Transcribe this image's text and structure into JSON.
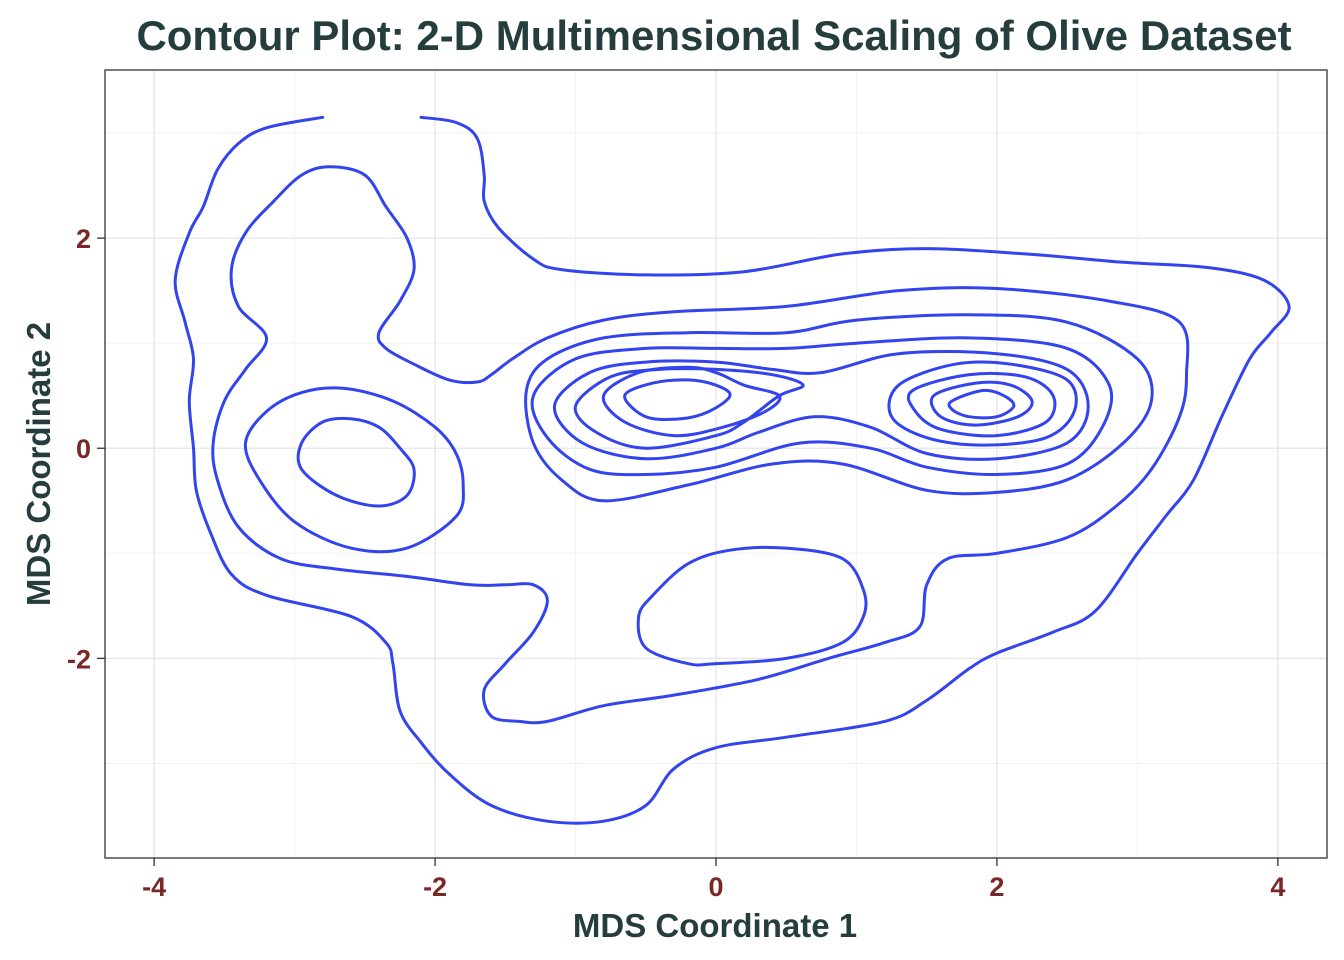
{
  "chart_data": {
    "type": "contour",
    "title": "Contour Plot:  2-D Multimensional Scaling of Olive Dataset",
    "xlabel": "MDS Coordinate 1",
    "ylabel": "MDS Coordinate 2",
    "xlim": [
      -4.35,
      4.35
    ],
    "ylim": [
      -3.9,
      3.6
    ],
    "x_ticks": [
      -4,
      -2,
      0,
      2,
      4
    ],
    "y_ticks": [
      -2,
      0,
      2
    ],
    "x_tick_labels": [
      "-4",
      "-2",
      "0",
      "2",
      "4"
    ],
    "y_tick_labels": [
      "-2",
      "0",
      "2"
    ],
    "grid": true,
    "line_color": "#3344ee",
    "contours": [
      {
        "name": "outer-level",
        "closed": false,
        "points": [
          [
            -2.1,
            3.15
          ],
          [
            -1.85,
            3.1
          ],
          [
            -1.7,
            2.95
          ],
          [
            -1.65,
            2.6
          ],
          [
            -1.65,
            2.35
          ],
          [
            -1.55,
            2.1
          ],
          [
            -1.3,
            1.8
          ],
          [
            -1.1,
            1.7
          ],
          [
            -0.5,
            1.65
          ],
          [
            0.2,
            1.68
          ],
          [
            0.9,
            1.85
          ],
          [
            1.5,
            1.9
          ],
          [
            2.2,
            1.85
          ],
          [
            2.9,
            1.77
          ],
          [
            3.5,
            1.72
          ],
          [
            3.9,
            1.6
          ],
          [
            4.08,
            1.35
          ],
          [
            3.95,
            1.1
          ],
          [
            3.8,
            0.85
          ],
          [
            3.6,
            0.3
          ],
          [
            3.4,
            -0.3
          ],
          [
            3.2,
            -0.65
          ],
          [
            3.0,
            -1.0
          ],
          [
            2.7,
            -1.55
          ],
          [
            2.4,
            -1.75
          ],
          [
            2.0,
            -1.95
          ],
          [
            1.8,
            -2.1
          ],
          [
            1.5,
            -2.4
          ],
          [
            1.2,
            -2.6
          ],
          [
            0.5,
            -2.75
          ],
          [
            0.0,
            -2.85
          ],
          [
            -0.3,
            -3.05
          ],
          [
            -0.5,
            -3.4
          ],
          [
            -0.8,
            -3.55
          ],
          [
            -1.2,
            -3.55
          ],
          [
            -1.6,
            -3.4
          ],
          [
            -1.9,
            -3.1
          ],
          [
            -2.1,
            -2.8
          ],
          [
            -2.25,
            -2.5
          ],
          [
            -2.3,
            -2.05
          ],
          [
            -2.35,
            -1.85
          ],
          [
            -2.6,
            -1.6
          ],
          [
            -3.2,
            -1.4
          ],
          [
            -3.45,
            -1.2
          ],
          [
            -3.6,
            -0.8
          ],
          [
            -3.7,
            -0.4
          ],
          [
            -3.72,
            0.0
          ],
          [
            -3.75,
            0.45
          ],
          [
            -3.72,
            0.85
          ],
          [
            -3.78,
            1.2
          ],
          [
            -3.85,
            1.6
          ],
          [
            -3.75,
            2.05
          ],
          [
            -3.65,
            2.3
          ],
          [
            -3.55,
            2.65
          ],
          [
            -3.4,
            2.9
          ],
          [
            -3.2,
            3.05
          ],
          [
            -2.8,
            3.15
          ]
        ]
      },
      {
        "name": "left-upper-lobe",
        "closed": true,
        "points": [
          [
            -2.75,
            2.68
          ],
          [
            -2.5,
            2.6
          ],
          [
            -2.35,
            2.3
          ],
          [
            -2.2,
            2.0
          ],
          [
            -2.15,
            1.7
          ],
          [
            -2.25,
            1.4
          ],
          [
            -2.4,
            1.1
          ],
          [
            -2.35,
            0.95
          ],
          [
            -2.15,
            0.8
          ],
          [
            -1.9,
            0.65
          ],
          [
            -1.7,
            0.63
          ],
          [
            -1.6,
            0.7
          ],
          [
            -1.45,
            0.85
          ],
          [
            -1.2,
            1.05
          ],
          [
            -0.8,
            1.22
          ],
          [
            -0.3,
            1.3
          ],
          [
            0.5,
            1.35
          ],
          [
            1.3,
            1.5
          ],
          [
            2.0,
            1.52
          ],
          [
            2.8,
            1.4
          ],
          [
            3.3,
            1.2
          ],
          [
            3.35,
            0.7
          ],
          [
            3.3,
            0.3
          ],
          [
            3.1,
            -0.2
          ],
          [
            2.85,
            -0.55
          ],
          [
            2.5,
            -0.85
          ],
          [
            2.0,
            -1.0
          ],
          [
            1.65,
            -1.05
          ],
          [
            1.5,
            -1.3
          ],
          [
            1.45,
            -1.7
          ],
          [
            1.2,
            -1.85
          ],
          [
            0.8,
            -2.0
          ],
          [
            0.3,
            -2.2
          ],
          [
            -0.3,
            -2.35
          ],
          [
            -0.8,
            -2.45
          ],
          [
            -1.2,
            -2.6
          ],
          [
            -1.4,
            -2.6
          ],
          [
            -1.6,
            -2.55
          ],
          [
            -1.65,
            -2.3
          ],
          [
            -1.5,
            -2.05
          ],
          [
            -1.3,
            -1.75
          ],
          [
            -1.2,
            -1.45
          ],
          [
            -1.3,
            -1.3
          ],
          [
            -1.5,
            -1.3
          ],
          [
            -1.75,
            -1.3
          ],
          [
            -2.2,
            -1.22
          ],
          [
            -2.7,
            -1.15
          ],
          [
            -3.1,
            -1.05
          ],
          [
            -3.4,
            -0.75
          ],
          [
            -3.55,
            -0.3
          ],
          [
            -3.58,
            0.05
          ],
          [
            -3.5,
            0.45
          ],
          [
            -3.35,
            0.75
          ],
          [
            -3.2,
            1.05
          ],
          [
            -3.4,
            1.35
          ],
          [
            -3.45,
            1.7
          ],
          [
            -3.35,
            2.05
          ],
          [
            -3.15,
            2.35
          ],
          [
            -2.95,
            2.6
          ]
        ]
      },
      {
        "name": "left-level-2",
        "closed": true,
        "points": [
          [
            -2.65,
            0.57
          ],
          [
            -2.3,
            0.45
          ],
          [
            -2.0,
            0.2
          ],
          [
            -1.85,
            -0.05
          ],
          [
            -1.8,
            -0.35
          ],
          [
            -1.85,
            -0.65
          ],
          [
            -2.2,
            -0.95
          ],
          [
            -2.6,
            -0.95
          ],
          [
            -3.0,
            -0.7
          ],
          [
            -3.25,
            -0.3
          ],
          [
            -3.35,
            0.05
          ],
          [
            -3.2,
            0.35
          ],
          [
            -2.95,
            0.53
          ]
        ]
      },
      {
        "name": "left-level-3",
        "closed": true,
        "points": [
          [
            -2.6,
            0.28
          ],
          [
            -2.4,
            0.2
          ],
          [
            -2.25,
            0.0
          ],
          [
            -2.15,
            -0.2
          ],
          [
            -2.2,
            -0.45
          ],
          [
            -2.4,
            -0.55
          ],
          [
            -2.7,
            -0.45
          ],
          [
            -2.95,
            -0.2
          ],
          [
            -2.95,
            0.05
          ],
          [
            -2.8,
            0.25
          ]
        ]
      },
      {
        "name": "bottom-lobe",
        "closed": true,
        "points": [
          [
            0.5,
            -0.95
          ],
          [
            0.9,
            -1.05
          ],
          [
            1.05,
            -1.35
          ],
          [
            1.05,
            -1.6
          ],
          [
            0.9,
            -1.85
          ],
          [
            0.5,
            -2.0
          ],
          [
            0.0,
            -2.05
          ],
          [
            -0.2,
            -2.05
          ],
          [
            -0.5,
            -1.9
          ],
          [
            -0.55,
            -1.6
          ],
          [
            -0.45,
            -1.4
          ],
          [
            -0.2,
            -1.1
          ],
          [
            0.1,
            -0.97
          ]
        ]
      },
      {
        "name": "center-level-2",
        "closed": true,
        "points": [
          [
            -1.35,
            0.55
          ],
          [
            -1.2,
            0.85
          ],
          [
            -0.8,
            1.05
          ],
          [
            -0.2,
            1.1
          ],
          [
            0.5,
            1.1
          ],
          [
            1.0,
            1.22
          ],
          [
            1.8,
            1.27
          ],
          [
            2.5,
            1.2
          ],
          [
            3.0,
            0.85
          ],
          [
            3.1,
            0.45
          ],
          [
            2.9,
            0.05
          ],
          [
            2.5,
            -0.3
          ],
          [
            2.0,
            -0.42
          ],
          [
            1.5,
            -0.4
          ],
          [
            0.9,
            -0.15
          ],
          [
            0.4,
            -0.15
          ],
          [
            -0.2,
            -0.35
          ],
          [
            -0.8,
            -0.5
          ],
          [
            -1.1,
            -0.3
          ],
          [
            -1.3,
            0.05
          ]
        ]
      },
      {
        "name": "center-level-3",
        "closed": true,
        "points": [
          [
            -1.3,
            0.5
          ],
          [
            -1.0,
            0.85
          ],
          [
            -0.5,
            0.95
          ],
          [
            0.0,
            0.95
          ],
          [
            0.5,
            0.95
          ],
          [
            1.0,
            1.0
          ],
          [
            1.8,
            1.05
          ],
          [
            2.5,
            0.95
          ],
          [
            2.8,
            0.6
          ],
          [
            2.75,
            0.2
          ],
          [
            2.5,
            -0.15
          ],
          [
            2.0,
            -0.25
          ],
          [
            1.5,
            -0.18
          ],
          [
            1.1,
            0.0
          ],
          [
            0.6,
            0.05
          ],
          [
            0.0,
            -0.18
          ],
          [
            -0.5,
            -0.25
          ],
          [
            -0.9,
            -0.2
          ],
          [
            -1.2,
            0.1
          ]
        ]
      },
      {
        "name": "center-level-4",
        "closed": true,
        "points": [
          [
            -1.15,
            0.4
          ],
          [
            -0.9,
            0.72
          ],
          [
            -0.5,
            0.82
          ],
          [
            0.0,
            0.82
          ],
          [
            0.4,
            0.75
          ],
          [
            0.75,
            0.72
          ],
          [
            1.3,
            0.9
          ],
          [
            2.0,
            0.9
          ],
          [
            2.5,
            0.75
          ],
          [
            2.65,
            0.4
          ],
          [
            2.5,
            0.05
          ],
          [
            2.0,
            -0.1
          ],
          [
            1.5,
            -0.05
          ],
          [
            1.1,
            0.2
          ],
          [
            0.7,
            0.3
          ],
          [
            0.3,
            0.15
          ],
          [
            0.0,
            0.0
          ],
          [
            -0.5,
            -0.1
          ],
          [
            -0.95,
            0.05
          ]
        ]
      },
      {
        "name": "center-level-5",
        "closed": true,
        "points": [
          [
            -1.0,
            0.4
          ],
          [
            -0.75,
            0.68
          ],
          [
            -0.4,
            0.75
          ],
          [
            0.0,
            0.75
          ],
          [
            0.4,
            0.7
          ],
          [
            0.62,
            0.6
          ],
          [
            0.45,
            0.5
          ],
          [
            0.2,
            0.25
          ],
          [
            0.0,
            0.12
          ],
          [
            -0.5,
            0.0
          ],
          [
            -0.85,
            0.15
          ]
        ]
      },
      {
        "name": "left-center-level-6",
        "closed": true,
        "points": [
          [
            -0.8,
            0.5
          ],
          [
            -0.55,
            0.72
          ],
          [
            -0.2,
            0.77
          ],
          [
            0.0,
            0.72
          ],
          [
            0.2,
            0.6
          ],
          [
            0.45,
            0.5
          ],
          [
            0.35,
            0.35
          ],
          [
            0.05,
            0.2
          ],
          [
            -0.3,
            0.12
          ],
          [
            -0.65,
            0.25
          ]
        ]
      },
      {
        "name": "left-center-level-7",
        "closed": true,
        "points": [
          [
            -0.65,
            0.5
          ],
          [
            -0.45,
            0.62
          ],
          [
            -0.2,
            0.65
          ],
          [
            0.0,
            0.6
          ],
          [
            0.1,
            0.5
          ],
          [
            -0.05,
            0.35
          ],
          [
            -0.25,
            0.28
          ],
          [
            -0.5,
            0.3
          ]
        ]
      },
      {
        "name": "right-level-6",
        "closed": true,
        "points": [
          [
            1.3,
            0.6
          ],
          [
            1.7,
            0.8
          ],
          [
            2.1,
            0.8
          ],
          [
            2.5,
            0.65
          ],
          [
            2.55,
            0.35
          ],
          [
            2.35,
            0.1
          ],
          [
            1.9,
            0.03
          ],
          [
            1.5,
            0.1
          ],
          [
            1.25,
            0.3
          ]
        ]
      },
      {
        "name": "right-level-7",
        "closed": true,
        "points": [
          [
            1.4,
            0.55
          ],
          [
            1.8,
            0.7
          ],
          [
            2.2,
            0.68
          ],
          [
            2.4,
            0.5
          ],
          [
            2.35,
            0.25
          ],
          [
            2.0,
            0.12
          ],
          [
            1.6,
            0.18
          ],
          [
            1.42,
            0.35
          ]
        ]
      },
      {
        "name": "right-level-8",
        "closed": true,
        "points": [
          [
            1.55,
            0.5
          ],
          [
            1.85,
            0.62
          ],
          [
            2.1,
            0.6
          ],
          [
            2.25,
            0.45
          ],
          [
            2.15,
            0.3
          ],
          [
            1.85,
            0.22
          ],
          [
            1.6,
            0.3
          ]
        ]
      },
      {
        "name": "right-level-9",
        "closed": true,
        "points": [
          [
            1.68,
            0.45
          ],
          [
            1.9,
            0.55
          ],
          [
            2.05,
            0.5
          ],
          [
            2.12,
            0.4
          ],
          [
            2.0,
            0.3
          ],
          [
            1.8,
            0.3
          ],
          [
            1.68,
            0.37
          ]
        ]
      }
    ]
  }
}
